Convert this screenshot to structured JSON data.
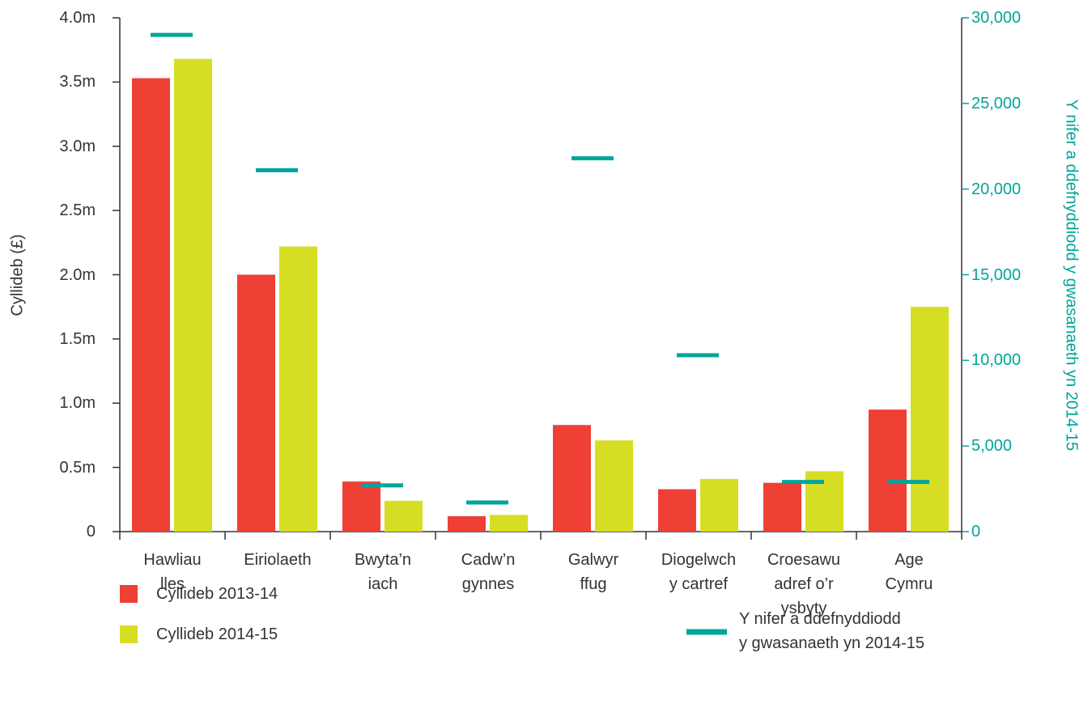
{
  "chart_data": {
    "type": "bar",
    "ylabel": "Cyllideb (£)",
    "y2label": "Y nifer a ddefnyddiodd y gwasanaeth yn 2014-15",
    "categories": [
      "Hawliau\nlles",
      "Eiriolaeth",
      "Bwyta’n\niach",
      "Cadw’n\ngynnes",
      "Galwyr\nffug",
      "Diogelwch\ny cartref",
      "Croesawu\nadref o’r\nysbyty",
      "Age\nCymru"
    ],
    "series": [
      {
        "name": "Cyllideb 2013-14",
        "color": "#ee4035",
        "values": [
          3530000,
          2000000,
          390000,
          120000,
          830000,
          330000,
          380000,
          950000
        ]
      },
      {
        "name": "Cyllideb 2014-15",
        "color": "#d6de23",
        "values": [
          3680000,
          2220000,
          240000,
          130000,
          710000,
          410000,
          470000,
          1750000
        ]
      },
      {
        "name": "Y nifer a ddefnyddiodd\ny gwasanaeth yn 2014-15",
        "color": "#00a59a",
        "axis": "y2",
        "marker": "dash",
        "values": [
          29000,
          21100,
          2700,
          1700,
          21800,
          10300,
          2900,
          2900
        ]
      }
    ],
    "ylim": [
      0,
      4000000
    ],
    "yticks": [
      0,
      {
        "value": 500000,
        "label": "0.5m"
      },
      {
        "value": 1000000,
        "label": "1.0m"
      },
      {
        "value": 1500000,
        "label": "1.5m"
      },
      {
        "value": 2000000,
        "label": "2.0m"
      },
      {
        "value": 2500000,
        "label": "2.5m"
      },
      {
        "value": 3000000,
        "label": "3.0m"
      },
      {
        "value": 3500000,
        "label": "3.5m"
      },
      {
        "value": 4000000,
        "label": "4.0m"
      }
    ],
    "y2lim": [
      0,
      30000
    ],
    "y2ticks": [
      0,
      {
        "value": 5000,
        "label": "5,000"
      },
      {
        "value": 10000,
        "label": "10,000"
      },
      {
        "value": 15000,
        "label": "15,000"
      },
      {
        "value": 20000,
        "label": "20,000"
      },
      {
        "value": 25000,
        "label": "25,000"
      },
      {
        "value": 30000,
        "label": "30,000"
      }
    ],
    "grid": false
  }
}
